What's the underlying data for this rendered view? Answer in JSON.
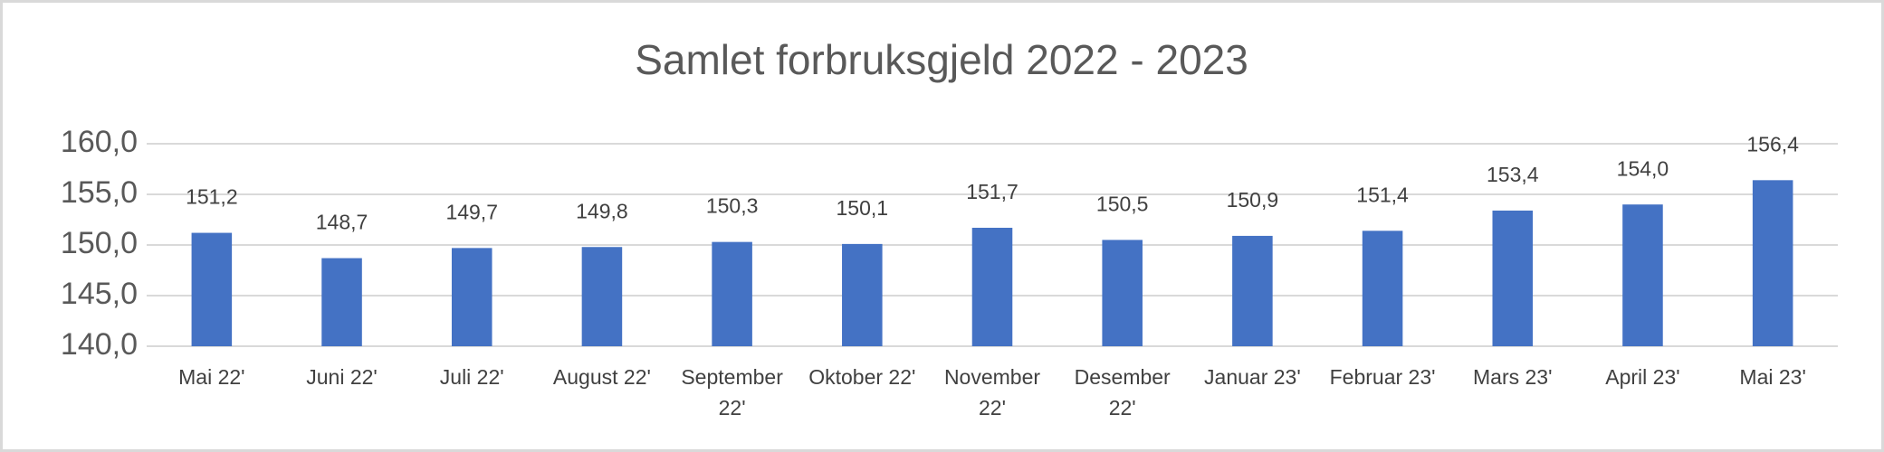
{
  "chart_data": {
    "type": "bar",
    "title": "Samlet forbruksgjeld 2022 - 2023",
    "categories": [
      "Mai 22'",
      "Juni 22'",
      "Juli 22'",
      "August 22'",
      "September 22'",
      "Oktober 22'",
      "November 22'",
      "Desember 22'",
      "Januar 23'",
      "Februar 23'",
      "Mars 23'",
      "April 23'",
      "Mai 23'"
    ],
    "values": [
      151.2,
      148.7,
      149.7,
      149.8,
      150.3,
      150.1,
      151.7,
      150.5,
      150.9,
      151.4,
      153.4,
      154.0,
      156.4
    ],
    "value_labels": [
      "151,2",
      "148,7",
      "149,7",
      "149,8",
      "150,3",
      "150,1",
      "151,7",
      "150,5",
      "150,9",
      "151,4",
      "153,4",
      "154,0",
      "156,4"
    ],
    "color": "#4472c4",
    "ylim": [
      140,
      160
    ],
    "yticks": [
      {
        "value": 140,
        "label": "140,0"
      },
      {
        "value": 145,
        "label": "145,0"
      },
      {
        "value": 150,
        "label": "150,0"
      },
      {
        "value": 155,
        "label": "155,0"
      },
      {
        "value": 160,
        "label": "160,0"
      }
    ],
    "grid": true
  }
}
